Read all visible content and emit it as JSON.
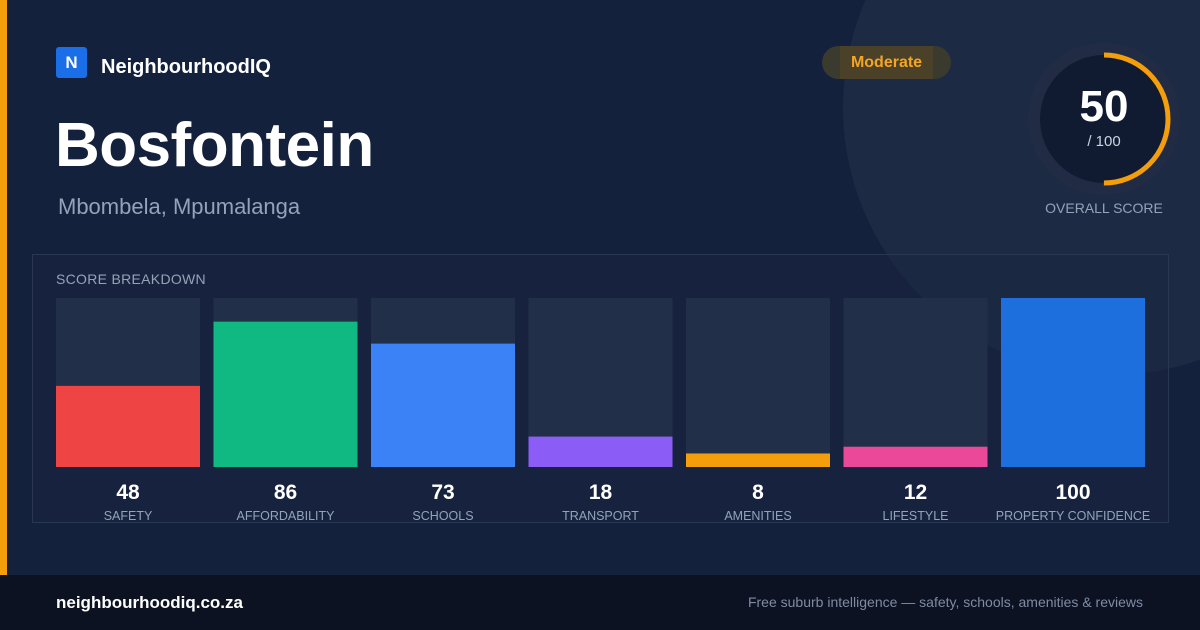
{
  "brand": {
    "logo_letter": "N",
    "name": "NeighbourhoodIQ"
  },
  "suburb": {
    "name": "Bosfontein",
    "location": "Mbombela, Mpumalanga"
  },
  "rating": {
    "label": "Moderate",
    "color": "#f5a524"
  },
  "overall": {
    "score": "50",
    "max_label": "/ 100",
    "caption": "OVERALL SCORE",
    "fraction": 0.5,
    "ring_color": "#f59e0b"
  },
  "breakdown": {
    "title": "SCORE BREAKDOWN"
  },
  "chart_data": {
    "type": "bar",
    "title": "SCORE BREAKDOWN",
    "ylim": [
      0,
      100
    ],
    "grid": false,
    "legend": "none",
    "categories": [
      "SAFETY",
      "AFFORDABILITY",
      "SCHOOLS",
      "TRANSPORT",
      "AMENITIES",
      "LIFESTYLE",
      "PROPERTY CONFIDENCE"
    ],
    "values": [
      48,
      86,
      73,
      18,
      8,
      12,
      100
    ],
    "colors": [
      "#ef4444",
      "#10b981",
      "#3b82f6",
      "#8b5cf6",
      "#f59e0b",
      "#ec4899",
      "#1d6fde"
    ],
    "track_color": "#222f48"
  },
  "footer": {
    "url": "neighbourhoodiq.co.za",
    "tagline": "Free suburb intelligence — safety, schools, amenities & reviews"
  }
}
